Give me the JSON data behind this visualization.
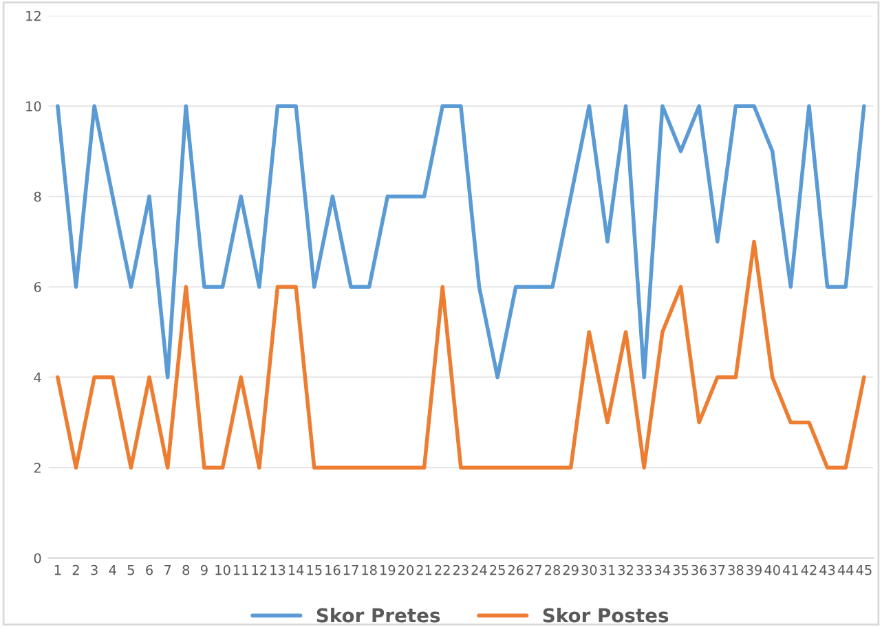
{
  "chart_data": {
    "type": "line",
    "categories": [
      "1",
      "2",
      "3",
      "4",
      "5",
      "6",
      "7",
      "8",
      "9",
      "10",
      "11",
      "12",
      "13",
      "14",
      "15",
      "16",
      "17",
      "18",
      "19",
      "20",
      "21",
      "22",
      "23",
      "24",
      "25",
      "26",
      "27",
      "28",
      "29",
      "30",
      "31",
      "32",
      "33",
      "34",
      "35",
      "36",
      "37",
      "38",
      "39",
      "40",
      "41",
      "42",
      "43",
      "44",
      "45"
    ],
    "series": [
      {
        "name": "Skor Pretes",
        "color": "#5b9bd5",
        "values": [
          10,
          6,
          10,
          8,
          6,
          8,
          4,
          10,
          6,
          6,
          8,
          6,
          10,
          10,
          6,
          8,
          6,
          6,
          8,
          8,
          8,
          10,
          10,
          6,
          4,
          6,
          6,
          6,
          8,
          10,
          7,
          10,
          4,
          10,
          9,
          10,
          7,
          10,
          10,
          9,
          6,
          10,
          6,
          6,
          10
        ]
      },
      {
        "name": "Skor Postes",
        "color": "#ed7d31",
        "values": [
          4,
          2,
          4,
          4,
          2,
          4,
          2,
          6,
          2,
          2,
          4,
          2,
          6,
          6,
          2,
          2,
          2,
          2,
          2,
          2,
          2,
          6,
          2,
          2,
          2,
          2,
          2,
          2,
          2,
          5,
          3,
          5,
          2,
          5,
          6,
          3,
          4,
          4,
          7,
          4,
          3,
          3,
          2,
          2,
          4
        ]
      }
    ],
    "ylim": [
      0,
      12
    ],
    "yticks": [
      0,
      2,
      4,
      6,
      8,
      10,
      12
    ],
    "grid": "y",
    "legend": "bottom",
    "marker": "none",
    "line_style": "solid"
  }
}
